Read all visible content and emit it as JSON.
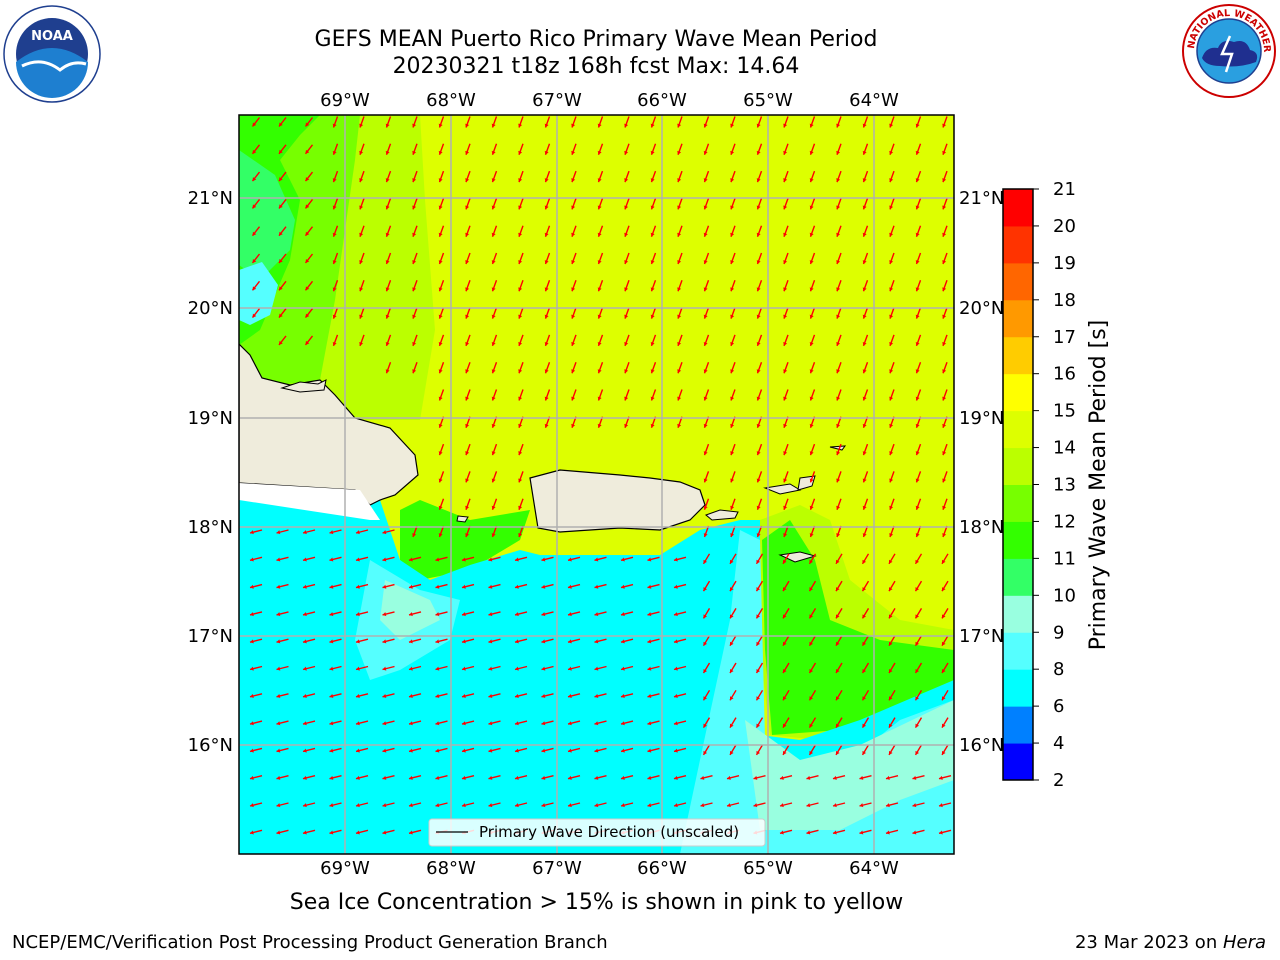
{
  "header": {
    "title_line1": "GEFS MEAN Puerto Rico Primary Wave Mean Period",
    "title_line2": "20230321 t18z 168h fcst   Max: 14.64"
  },
  "logos": {
    "left_icon": "noaa-logo",
    "left_text": "NOAA",
    "right_icon": "nws-logo",
    "right_text": "NATIONAL WEATHER SERVICE"
  },
  "map": {
    "lon_labels": [
      "69°W",
      "68°W",
      "67°W",
      "66°W",
      "65°W",
      "64°W"
    ],
    "lat_labels": [
      "21°N",
      "20°N",
      "19°N",
      "18°N",
      "17°N",
      "16°N"
    ],
    "legend_label": "Primary Wave Direction (unscaled)",
    "arrow_color": "#ff0000",
    "land_color": "#efecdc"
  },
  "colorbar": {
    "label": "Primary Wave Mean Period [s]",
    "ticks": [
      "2",
      "4",
      "6",
      "8",
      "9",
      "10",
      "11",
      "12",
      "13",
      "14",
      "15",
      "16",
      "17",
      "18",
      "19",
      "20",
      "21"
    ],
    "colors": [
      "#0000ff",
      "#0080ff",
      "#00ffff",
      "#55ffff",
      "#99ffe0",
      "#33ff66",
      "#33ff00",
      "#77ff00",
      "#bbff00",
      "#ddff00",
      "#ffff00",
      "#ffcc00",
      "#ff9900",
      "#ff6600",
      "#ff3300",
      "#ff0000"
    ]
  },
  "note": "Sea Ice Concentration > 15% is shown in pink to yellow",
  "footer": {
    "left": "NCEP/EMC/Verification Post Processing Product Generation Branch",
    "date": "23 Mar 2023 on ",
    "host": "Hera"
  }
}
